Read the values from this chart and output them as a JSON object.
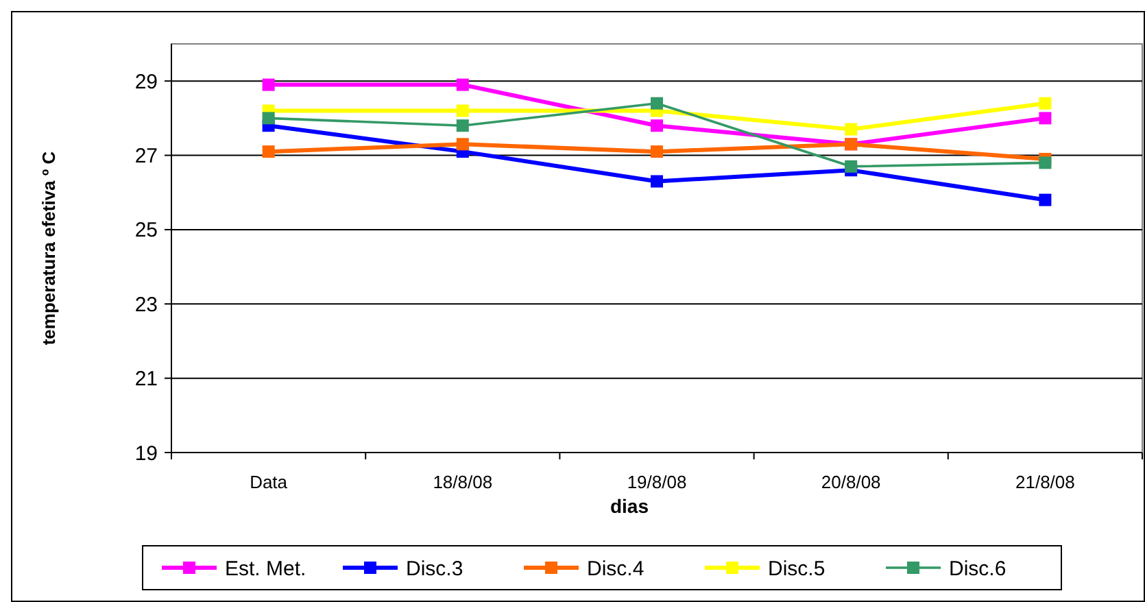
{
  "chart_data": {
    "type": "line",
    "xlabel": "dias",
    "ylabel": "temperatura efetiva º C",
    "categories": [
      "Data",
      "18/8/08",
      "19/8/08",
      "20/8/08",
      "21/8/08"
    ],
    "ylim": [
      19,
      30
    ],
    "yticks": [
      19,
      21,
      23,
      25,
      27,
      29
    ],
    "grid": "y",
    "legend": "bottom",
    "marker": "square",
    "line_style": "solid",
    "series": [
      {
        "name": "Est. Met.",
        "color": "#ff00ff",
        "values": [
          28.9,
          28.9,
          27.8,
          27.3,
          28.0
        ]
      },
      {
        "name": "Disc.3",
        "color": "#0000ff",
        "values": [
          27.8,
          27.1,
          26.3,
          26.6,
          25.8
        ]
      },
      {
        "name": "Disc.4",
        "color": "#ff6600",
        "values": [
          27.1,
          27.3,
          27.1,
          27.3,
          26.9
        ]
      },
      {
        "name": "Disc.5",
        "color": "#ffff00",
        "values": [
          28.2,
          28.2,
          28.2,
          27.7,
          28.4
        ]
      },
      {
        "name": "Disc.6",
        "color": "#339966",
        "values": [
          28.0,
          27.8,
          28.4,
          26.7,
          26.8
        ]
      }
    ]
  }
}
